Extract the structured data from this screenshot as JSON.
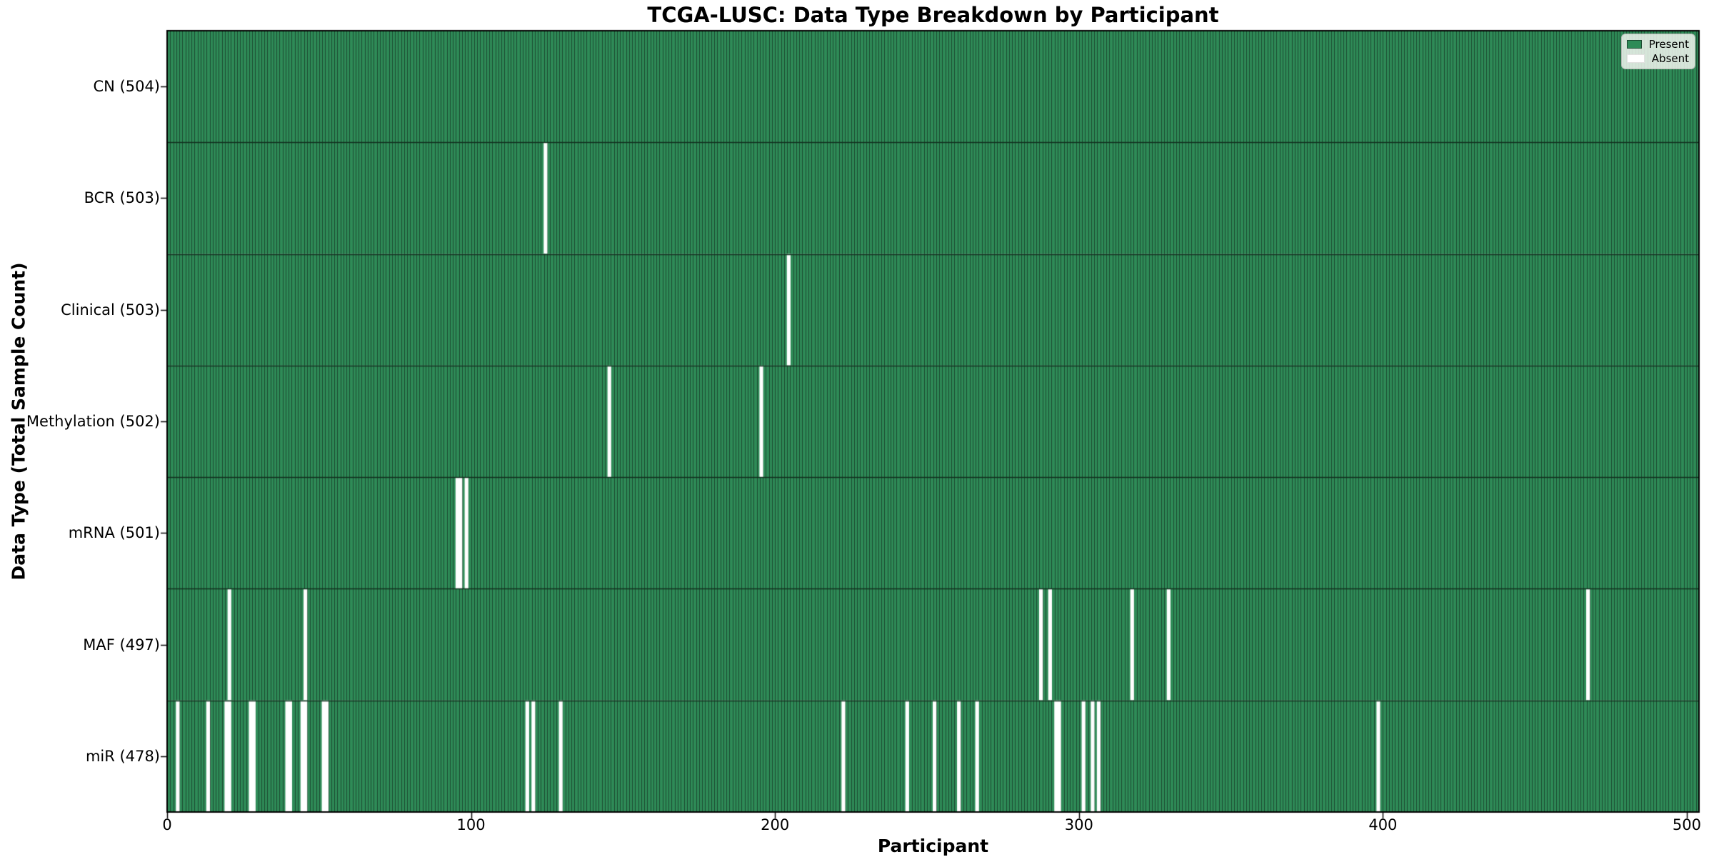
{
  "chart_data": {
    "type": "heatmap",
    "title": "TCGA-LUSC: Data Type Breakdown by Participant",
    "xlabel": "Participant",
    "ylabel": "Data Type (Total Sample Count)",
    "x_range": [
      0,
      504
    ],
    "x_ticks": [
      0,
      100,
      200,
      300,
      400,
      500
    ],
    "n_participants": 504,
    "grid": false,
    "legend": {
      "position": "upper right",
      "present": "Present",
      "absent": "Absent"
    },
    "colors": {
      "present": "#2e8b57",
      "absent": "#ffffff",
      "cell_edge": "#1c4a31",
      "row_separator": "#12301f",
      "axis": "#000000",
      "legend_border": "#b6bab4"
    },
    "rows": [
      {
        "name": "CN",
        "total": 504,
        "label": "CN (504)",
        "absent_participants": []
      },
      {
        "name": "BCR",
        "total": 503,
        "label": "BCR (503)",
        "absent_participants": [
          124
        ]
      },
      {
        "name": "Clinical",
        "total": 503,
        "label": "Clinical (503)",
        "absent_participants": [
          204
        ]
      },
      {
        "name": "Methylation",
        "total": 502,
        "label": "Methylation (502)",
        "absent_participants": [
          145,
          195
        ]
      },
      {
        "name": "mRNA",
        "total": 501,
        "label": "mRNA (501)",
        "absent_participants": [
          95,
          96,
          98
        ]
      },
      {
        "name": "MAF",
        "total": 497,
        "label": "MAF (497)",
        "absent_participants": [
          20,
          45,
          287,
          290,
          317,
          329,
          467
        ]
      },
      {
        "name": "miR",
        "total": 478,
        "label": "miR (478)",
        "absent_participants": [
          3,
          13,
          19,
          20,
          27,
          28,
          39,
          40,
          44,
          45,
          51,
          52,
          118,
          120,
          129,
          222,
          243,
          252,
          260,
          266,
          292,
          293,
          301,
          304,
          306,
          398
        ]
      }
    ]
  }
}
